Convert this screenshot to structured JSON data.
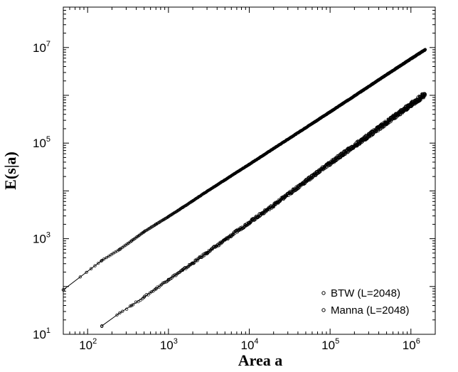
{
  "chart_data": {
    "type": "scatter",
    "xlabel": "Area a",
    "ylabel": "E(s|a)",
    "x_scale": "log",
    "y_scale": "log",
    "xlim": [
      50,
      2000000
    ],
    "ylim": [
      10,
      70000000
    ],
    "x_ticks": [
      {
        "base": "10",
        "exp": "2",
        "value": 100
      },
      {
        "base": "10",
        "exp": "3",
        "value": 1000
      },
      {
        "base": "10",
        "exp": "4",
        "value": 10000
      },
      {
        "base": "10",
        "exp": "5",
        "value": 100000
      },
      {
        "base": "10",
        "exp": "6",
        "value": 1000000
      }
    ],
    "y_ticks": [
      {
        "base": "10",
        "exp": "1",
        "value": 10
      },
      {
        "base": "10",
        "exp": "3",
        "value": 1000
      },
      {
        "base": "10",
        "exp": "5",
        "value": 100000
      },
      {
        "base": "10",
        "exp": "7",
        "value": 10000000
      }
    ],
    "grid": false,
    "legend_position": "bottom-right",
    "series": [
      {
        "name": "BTW (L=2048)",
        "marker": "open-circle",
        "color": "#000000",
        "points": [
          [
            50,
            85
          ],
          [
            150,
            350
          ],
          [
            250,
            600
          ],
          [
            350,
            900
          ],
          [
            500,
            1400
          ],
          [
            700,
            2000
          ],
          [
            1000,
            2900
          ],
          [
            1500,
            4500
          ],
          [
            2000,
            6200
          ],
          [
            3000,
            9800
          ],
          [
            5000,
            17000
          ],
          [
            10000,
            36000
          ],
          [
            20000,
            77000
          ],
          [
            50000,
            210000
          ],
          [
            100000,
            450000
          ],
          [
            200000,
            970000
          ],
          [
            500000,
            2700000
          ],
          [
            1000000,
            5800000
          ],
          [
            1500000,
            9000000
          ]
        ]
      },
      {
        "name": "Manna (L=2048)",
        "marker": "open-circle",
        "color": "#000000",
        "points": [
          [
            150,
            15
          ],
          [
            250,
            28
          ],
          [
            350,
            40
          ],
          [
            500,
            60
          ],
          [
            700,
            90
          ],
          [
            1000,
            140
          ],
          [
            1500,
            220
          ],
          [
            2000,
            310
          ],
          [
            3000,
            510
          ],
          [
            5000,
            940
          ],
          [
            10000,
            2200
          ],
          [
            20000,
            5000
          ],
          [
            50000,
            16000
          ],
          [
            100000,
            38000
          ],
          [
            200000,
            88000
          ],
          [
            500000,
            270000
          ],
          [
            1000000,
            640000
          ],
          [
            1500000,
            1050000
          ]
        ]
      }
    ]
  }
}
